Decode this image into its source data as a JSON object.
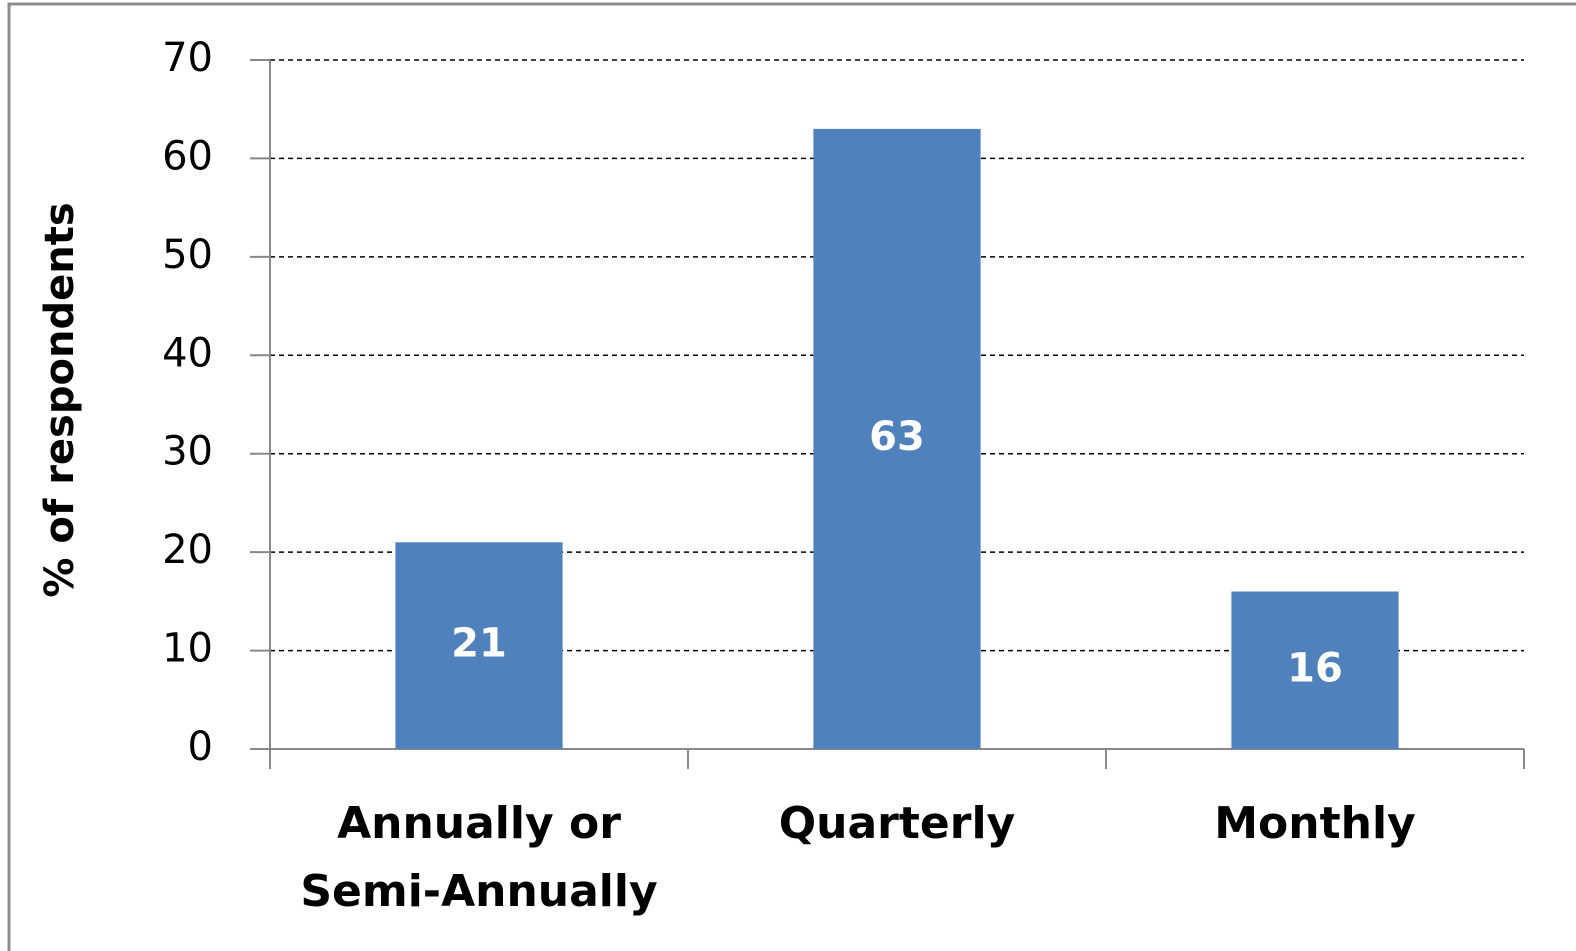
{
  "chart_data": {
    "type": "bar",
    "y_label": "% of respondents",
    "categories": [
      "Annually or Semi-Annually",
      "Quarterly",
      "Monthly"
    ],
    "values": [
      21,
      63,
      16
    ],
    "color": "#4f81bd",
    "ylim": [
      0,
      70
    ],
    "yticks": [
      0,
      10,
      20,
      30,
      40,
      50,
      60,
      70
    ],
    "grid": true
  }
}
